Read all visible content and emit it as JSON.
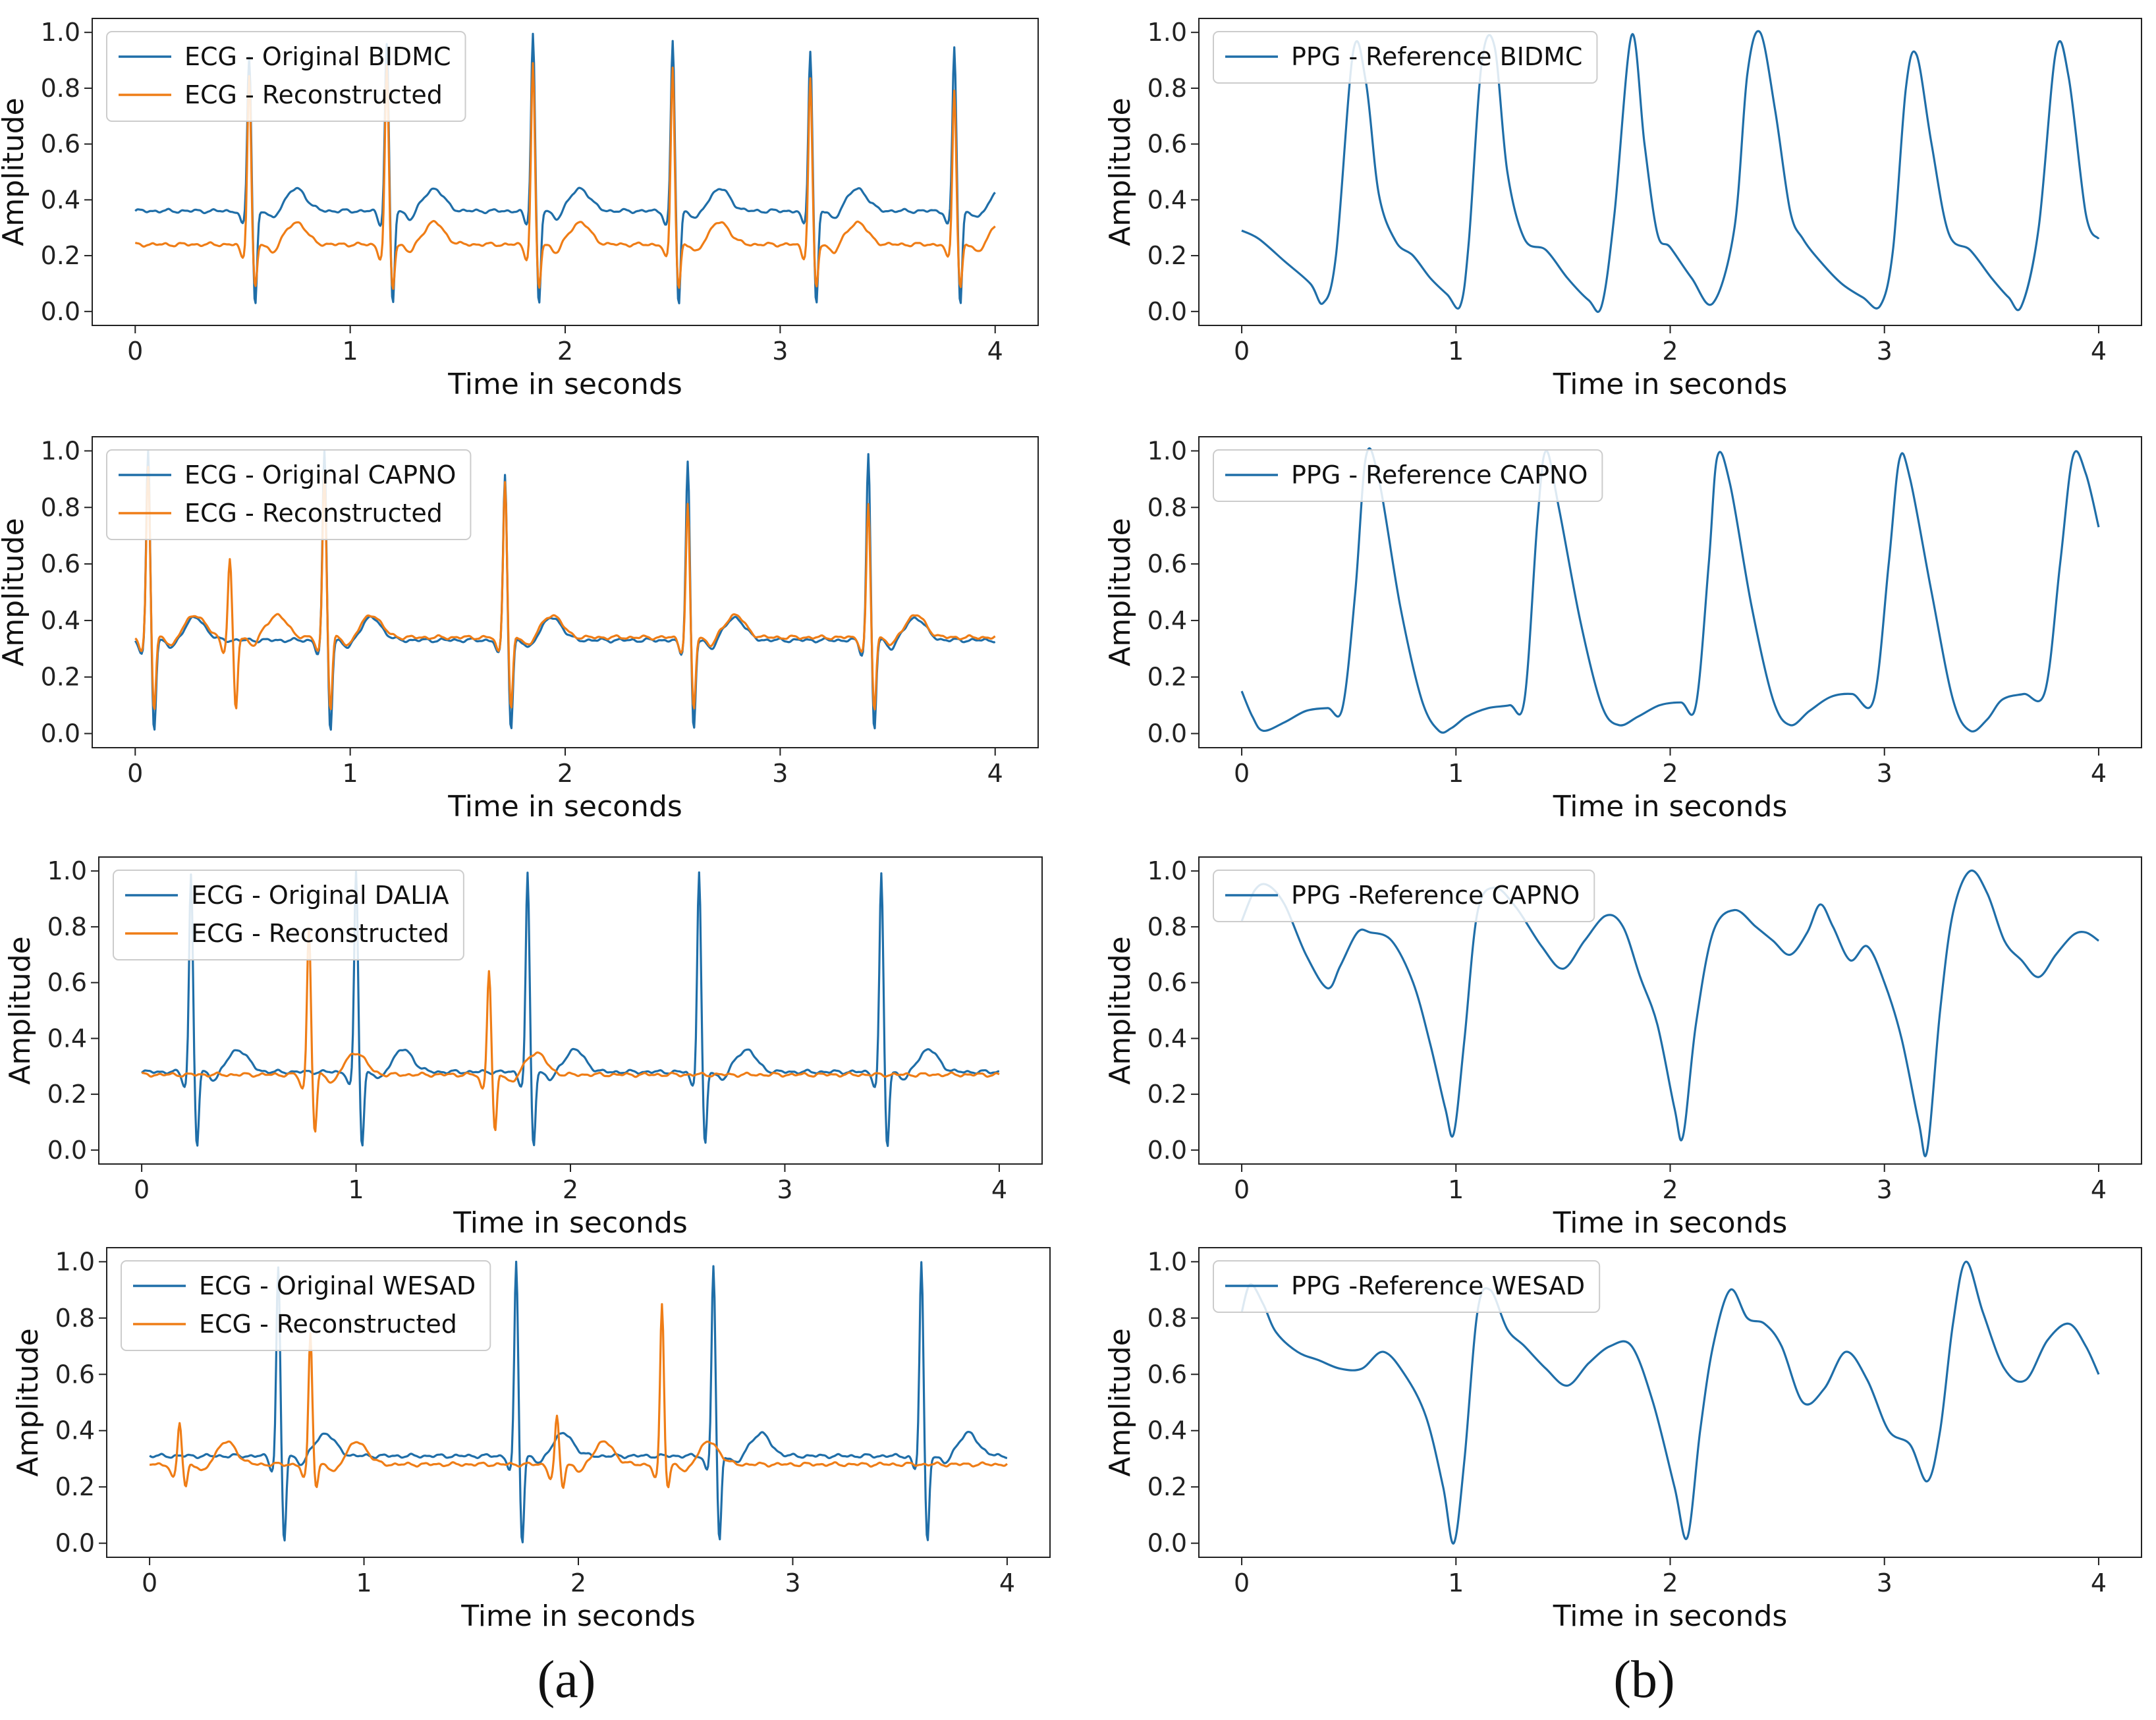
{
  "figure": {
    "panel_labels": [
      "(a)",
      "(b)"
    ]
  },
  "colors": {
    "ecg": "#1f6ea8",
    "reconstructed": "#ef7d16",
    "ppg": "#1f6ea8",
    "axis": "#222222"
  },
  "chart_data": [
    {
      "type": "line",
      "title": "",
      "xlabel": "Time in seconds",
      "ylabel": "Amplitude",
      "xlim": [
        -0.2,
        4.2
      ],
      "ylim": [
        -0.05,
        1.05
      ],
      "xticks": [
        0,
        1,
        2,
        3,
        4
      ],
      "yticks": [
        0.0,
        0.2,
        0.4,
        0.6,
        0.8,
        1.0
      ],
      "legend_position": "top-left",
      "series": [
        {
          "name": "ECG - Original BIDMC",
          "kind": "ecg",
          "color": "#1f6ea8",
          "baseline": 0.36,
          "r_peaks": [
            0.53,
            1.17,
            1.85,
            2.5,
            3.14,
            3.81
          ],
          "r_heights": [
            0.92,
            0.96,
            1.0,
            0.97,
            0.94,
            0.95
          ],
          "s_min": 0.02
        },
        {
          "name": "ECG - Reconstructed",
          "kind": "ecg",
          "color": "#ef7d16",
          "baseline": 0.24,
          "r_peaks": [
            0.53,
            1.17,
            1.85,
            2.5,
            3.14,
            3.81
          ],
          "r_heights": [
            0.85,
            0.88,
            0.89,
            0.88,
            0.84,
            0.8
          ],
          "s_min": 0.08
        }
      ]
    },
    {
      "type": "line",
      "title": "",
      "xlabel": "Time in seconds",
      "ylabel": "Amplitude",
      "xlim": [
        -0.2,
        4.2
      ],
      "ylim": [
        -0.05,
        1.05
      ],
      "xticks": [
        0,
        1,
        2,
        3,
        4
      ],
      "yticks": [
        0.0,
        0.2,
        0.4,
        0.6,
        0.8,
        1.0
      ],
      "legend_position": "top-left",
      "series": [
        {
          "name": "ECG - Original CAPNO",
          "kind": "ecg",
          "color": "#1f6ea8",
          "baseline": 0.33,
          "r_peaks": [
            0.06,
            0.88,
            1.72,
            2.57,
            3.41
          ],
          "r_heights": [
            1.0,
            1.0,
            0.92,
            0.97,
            0.99
          ],
          "s_min": 0.01
        },
        {
          "name": "ECG - Reconstructed",
          "kind": "ecg",
          "color": "#ef7d16",
          "baseline": 0.34,
          "r_peaks": [
            0.06,
            0.44,
            0.88,
            1.72,
            2.57,
            3.41
          ],
          "r_heights": [
            0.95,
            0.62,
            0.93,
            0.9,
            0.81,
            0.81
          ],
          "s_min": 0.08
        }
      ]
    },
    {
      "type": "line",
      "title": "",
      "xlabel": "Time in seconds",
      "ylabel": "Amplitude",
      "xlim": [
        -0.2,
        4.2
      ],
      "ylim": [
        -0.05,
        1.05
      ],
      "xticks": [
        0,
        1,
        2,
        3,
        4
      ],
      "yticks": [
        0.0,
        0.2,
        0.4,
        0.6,
        0.8,
        1.0
      ],
      "legend_position": "top-left",
      "series": [
        {
          "name": "ECG - Original DALIA",
          "kind": "ecg",
          "color": "#1f6ea8",
          "baseline": 0.28,
          "r_peaks": [
            0.23,
            1.0,
            1.8,
            2.6,
            3.45
          ],
          "r_heights": [
            0.99,
            1.0,
            0.99,
            1.0,
            0.99
          ],
          "s_min": 0.01
        },
        {
          "name": "ECG - Reconstructed",
          "kind": "ecg",
          "color": "#ef7d16",
          "baseline": 0.27,
          "r_peaks": [
            0.78,
            1.62
          ],
          "r_heights": [
            0.8,
            0.65
          ],
          "s_min": 0.06
        }
      ]
    },
    {
      "type": "line",
      "title": "",
      "xlabel": "Time in seconds",
      "ylabel": "Amplitude",
      "xlim": [
        -0.2,
        4.2
      ],
      "ylim": [
        -0.05,
        1.05
      ],
      "xticks": [
        0,
        1,
        2,
        3,
        4
      ],
      "yticks": [
        0.0,
        0.2,
        0.4,
        0.6,
        0.8,
        1.0
      ],
      "legend_position": "top-left",
      "series": [
        {
          "name": "ECG - Original WESAD",
          "kind": "ecg",
          "color": "#1f6ea8",
          "baseline": 0.31,
          "r_peaks": [
            0.6,
            1.71,
            2.63,
            3.6
          ],
          "r_heights": [
            0.98,
            1.0,
            0.99,
            1.0
          ],
          "s_min": 0.0
        },
        {
          "name": "ECG - Reconstructed",
          "kind": "ecg",
          "color": "#ef7d16",
          "baseline": 0.28,
          "r_peaks": [
            0.14,
            0.75,
            1.9,
            2.39
          ],
          "r_heights": [
            0.43,
            0.75,
            0.45,
            0.85
          ],
          "s_min": 0.2
        }
      ]
    },
    {
      "type": "line",
      "title": "",
      "xlabel": "Time in seconds",
      "ylabel": "Amplitude",
      "xlim": [
        -0.2,
        4.2
      ],
      "ylim": [
        -0.05,
        1.05
      ],
      "xticks": [
        0,
        1,
        2,
        3,
        4
      ],
      "yticks": [
        0.0,
        0.2,
        0.4,
        0.6,
        0.8,
        1.0
      ],
      "legend_position": "top-left",
      "series": [
        {
          "name": "PPG - Reference BIDMC",
          "kind": "points",
          "color": "#1f6ea8",
          "x": [
            0.0,
            0.08,
            0.2,
            0.32,
            0.38,
            0.44,
            0.52,
            0.58,
            0.64,
            0.72,
            0.8,
            0.88,
            0.96,
            1.02,
            1.06,
            1.12,
            1.18,
            1.24,
            1.32,
            1.42,
            1.52,
            1.62,
            1.68,
            1.74,
            1.82,
            1.88,
            1.94,
            2.0,
            2.1,
            2.2,
            2.3,
            2.36,
            2.42,
            2.49,
            2.56,
            2.62,
            2.7,
            2.8,
            2.9,
            2.98,
            3.04,
            3.1,
            3.15,
            3.22,
            3.3,
            3.4,
            3.5,
            3.58,
            3.64,
            3.72,
            3.8,
            3.86,
            3.94,
            4.0
          ],
          "y": [
            0.29,
            0.26,
            0.18,
            0.1,
            0.03,
            0.2,
            0.93,
            0.82,
            0.42,
            0.25,
            0.2,
            0.12,
            0.06,
            0.02,
            0.25,
            0.89,
            0.95,
            0.5,
            0.26,
            0.22,
            0.12,
            0.04,
            0.02,
            0.35,
            0.99,
            0.6,
            0.28,
            0.23,
            0.12,
            0.03,
            0.3,
            0.85,
            1.0,
            0.72,
            0.36,
            0.26,
            0.18,
            0.1,
            0.05,
            0.02,
            0.22,
            0.8,
            0.92,
            0.6,
            0.28,
            0.22,
            0.12,
            0.05,
            0.02,
            0.3,
            0.93,
            0.84,
            0.35,
            0.26
          ]
        },
        {
          "name": "_x",
          "kind": "none",
          "color": "#1f6ea8"
        }
      ]
    },
    {
      "type": "line",
      "title": "",
      "xlabel": "Time in seconds",
      "ylabel": "Amplitude",
      "xlim": [
        -0.2,
        4.2
      ],
      "ylim": [
        -0.05,
        1.05
      ],
      "xticks": [
        0,
        1,
        2,
        3,
        4
      ],
      "yticks": [
        0.0,
        0.2,
        0.4,
        0.6,
        0.8,
        1.0
      ],
      "legend_position": "top-left",
      "series": [
        {
          "name": "PPG - Reference CAPNO",
          "kind": "points",
          "color": "#1f6ea8",
          "x": [
            0.0,
            0.05,
            0.1,
            0.2,
            0.3,
            0.4,
            0.47,
            0.53,
            0.58,
            0.64,
            0.74,
            0.84,
            0.92,
            0.98,
            1.05,
            1.15,
            1.25,
            1.32,
            1.38,
            1.42,
            1.48,
            1.58,
            1.68,
            1.76,
            1.85,
            1.95,
            2.05,
            2.12,
            2.18,
            2.22,
            2.28,
            2.38,
            2.48,
            2.56,
            2.65,
            2.75,
            2.85,
            2.95,
            3.02,
            3.07,
            3.12,
            3.22,
            3.32,
            3.4,
            3.48,
            3.55,
            3.65,
            3.75,
            3.82,
            3.88,
            3.94,
            4.0
          ],
          "y": [
            0.15,
            0.06,
            0.01,
            0.04,
            0.08,
            0.09,
            0.09,
            0.5,
            0.98,
            0.9,
            0.45,
            0.12,
            0.01,
            0.02,
            0.06,
            0.09,
            0.1,
            0.12,
            0.75,
            1.0,
            0.8,
            0.4,
            0.1,
            0.03,
            0.06,
            0.1,
            0.11,
            0.1,
            0.6,
            0.98,
            0.88,
            0.45,
            0.12,
            0.03,
            0.08,
            0.13,
            0.14,
            0.12,
            0.6,
            0.97,
            0.9,
            0.5,
            0.12,
            0.01,
            0.05,
            0.12,
            0.14,
            0.15,
            0.6,
            0.98,
            0.92,
            0.73
          ]
        },
        {
          "name": "_x",
          "kind": "none",
          "color": "#1f6ea8"
        }
      ]
    },
    {
      "type": "line",
      "title": "",
      "xlabel": "Time in seconds",
      "ylabel": "Amplitude",
      "xlim": [
        -0.2,
        4.2
      ],
      "ylim": [
        -0.05,
        1.05
      ],
      "xticks": [
        0,
        1,
        2,
        3,
        4
      ],
      "yticks": [
        0.0,
        0.2,
        0.4,
        0.6,
        0.8,
        1.0
      ],
      "legend_position": "top-left",
      "series": [
        {
          "name": "PPG -Reference CAPNO",
          "kind": "points",
          "color": "#1f6ea8",
          "x": [
            0.0,
            0.06,
            0.12,
            0.2,
            0.3,
            0.4,
            0.46,
            0.54,
            0.6,
            0.7,
            0.8,
            0.88,
            0.95,
            0.99,
            1.04,
            1.1,
            1.18,
            1.28,
            1.4,
            1.5,
            1.6,
            1.7,
            1.78,
            1.86,
            1.94,
            2.02,
            2.06,
            2.12,
            2.2,
            2.3,
            2.4,
            2.48,
            2.56,
            2.64,
            2.7,
            2.76,
            2.84,
            2.92,
            3.0,
            3.08,
            3.16,
            3.2,
            3.26,
            3.32,
            3.4,
            3.48,
            3.56,
            3.64,
            3.72,
            3.8,
            3.88,
            3.94,
            4.0
          ],
          "y": [
            0.82,
            0.93,
            0.95,
            0.88,
            0.7,
            0.58,
            0.66,
            0.78,
            0.78,
            0.75,
            0.6,
            0.38,
            0.15,
            0.06,
            0.4,
            0.85,
            0.94,
            0.87,
            0.73,
            0.65,
            0.75,
            0.84,
            0.8,
            0.62,
            0.45,
            0.15,
            0.05,
            0.45,
            0.78,
            0.86,
            0.8,
            0.75,
            0.7,
            0.78,
            0.88,
            0.8,
            0.68,
            0.73,
            0.6,
            0.4,
            0.1,
            0.0,
            0.5,
            0.85,
            1.0,
            0.92,
            0.75,
            0.68,
            0.62,
            0.7,
            0.77,
            0.78,
            0.75
          ]
        },
        {
          "name": "_x",
          "kind": "none",
          "color": "#1f6ea8"
        }
      ]
    },
    {
      "type": "line",
      "title": "",
      "xlabel": "Time in seconds",
      "ylabel": "Amplitude",
      "xlim": [
        -0.2,
        4.2
      ],
      "ylim": [
        -0.05,
        1.05
      ],
      "xticks": [
        0,
        1,
        2,
        3,
        4
      ],
      "yticks": [
        0.0,
        0.2,
        0.4,
        0.6,
        0.8,
        1.0
      ],
      "legend_position": "top-left",
      "series": [
        {
          "name": "PPG -Reference WESAD",
          "kind": "points",
          "color": "#1f6ea8",
          "x": [
            0.0,
            0.04,
            0.1,
            0.16,
            0.26,
            0.36,
            0.46,
            0.56,
            0.66,
            0.76,
            0.86,
            0.94,
            0.99,
            1.04,
            1.1,
            1.16,
            1.24,
            1.32,
            1.42,
            1.52,
            1.62,
            1.72,
            1.82,
            1.92,
            2.02,
            2.08,
            2.14,
            2.2,
            2.28,
            2.36,
            2.44,
            2.52,
            2.62,
            2.72,
            2.82,
            2.92,
            3.02,
            3.12,
            3.2,
            3.26,
            3.32,
            3.38,
            3.46,
            3.56,
            3.66,
            3.76,
            3.86,
            3.94,
            4.0
          ],
          "y": [
            0.82,
            0.92,
            0.85,
            0.75,
            0.68,
            0.65,
            0.62,
            0.62,
            0.68,
            0.6,
            0.45,
            0.2,
            0.0,
            0.3,
            0.82,
            0.9,
            0.76,
            0.7,
            0.62,
            0.56,
            0.64,
            0.7,
            0.7,
            0.5,
            0.2,
            0.02,
            0.4,
            0.7,
            0.9,
            0.8,
            0.78,
            0.7,
            0.5,
            0.55,
            0.68,
            0.58,
            0.4,
            0.35,
            0.22,
            0.4,
            0.78,
            1.0,
            0.82,
            0.62,
            0.58,
            0.72,
            0.78,
            0.7,
            0.6
          ]
        },
        {
          "name": "_x",
          "kind": "none",
          "color": "#1f6ea8"
        }
      ]
    }
  ]
}
